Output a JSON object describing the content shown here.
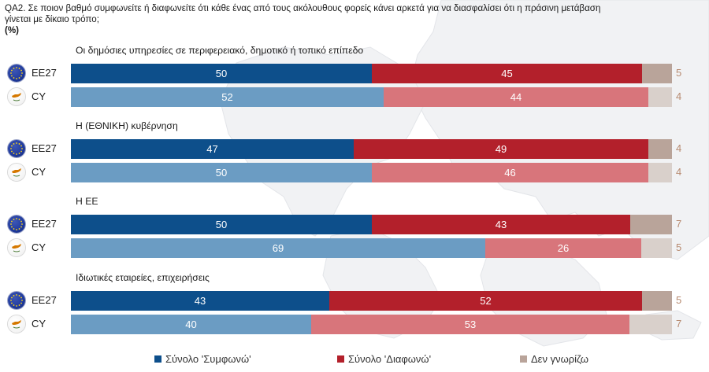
{
  "question": {
    "text": "QA2. Σε ποιον βαθμό συμφωνείτε ή διαφωνείτε ότι κάθε ένας από τους ακόλουθους φορείς κάνει αρκετά για να διασφαλίσει ότι η πράσινη μετάβαση γίνεται με δίκαιο τρόπο;",
    "unit": "(%)"
  },
  "colors": {
    "agree_eu": "#0d4f8b",
    "disagree_eu": "#b3202b",
    "dk_eu": "#b9a49a",
    "agree_cy": "#6b9cc3",
    "disagree_cy": "#d8757b",
    "dk_cy": "#d9d0cb",
    "dk_text": "#b78a70"
  },
  "legend": {
    "agree": "Σύνολο 'Συμφωνώ'",
    "disagree": "Σύνολο 'Διαφωνώ'",
    "dk": "Δεν γνωρίζω"
  },
  "chart_data": {
    "type": "bar",
    "stacked": true,
    "orientation": "horizontal",
    "title": "QA2. Σε ποιον βαθμό συμφωνείτε ή διαφωνείτε ότι κάθε ένας από τους ακόλουθους φορείς κάνει αρκετά για να διασφαλίσει ότι η πράσινη μετάβαση γίνεται με δίκαιο τρόπο; (%)",
    "series_names": [
      "Σύνολο 'Συμφωνώ'",
      "Σύνολο 'Διαφωνώ'",
      "Δεν γνωρίζω"
    ],
    "groups": [
      {
        "label": "Οι δημόσιες υπηρεσίες σε περιφερειακό, δημοτικό ή τοπικό επίπεδο",
        "rows": [
          {
            "country": "EE27",
            "type": "eu",
            "agree": 50,
            "disagree": 45,
            "dk": 5
          },
          {
            "country": "CY",
            "type": "cy",
            "agree": 52,
            "disagree": 44,
            "dk": 4
          }
        ]
      },
      {
        "label": "Η (ΕΘΝΙΚΗ) κυβέρνηση",
        "rows": [
          {
            "country": "EE27",
            "type": "eu",
            "agree": 47,
            "disagree": 49,
            "dk": 4
          },
          {
            "country": "CY",
            "type": "cy",
            "agree": 50,
            "disagree": 46,
            "dk": 4
          }
        ]
      },
      {
        "label": "Η ΕΕ",
        "rows": [
          {
            "country": "EE27",
            "type": "eu",
            "agree": 50,
            "disagree": 43,
            "dk": 7
          },
          {
            "country": "CY",
            "type": "cy",
            "agree": 69,
            "disagree": 26,
            "dk": 5
          }
        ]
      },
      {
        "label": "Ιδιωτικές εταιρείες, επιχειρήσεις",
        "rows": [
          {
            "country": "EE27",
            "type": "eu",
            "agree": 43,
            "disagree": 52,
            "dk": 5
          },
          {
            "country": "CY",
            "type": "cy",
            "agree": 40,
            "disagree": 53,
            "dk": 7
          }
        ]
      }
    ]
  }
}
